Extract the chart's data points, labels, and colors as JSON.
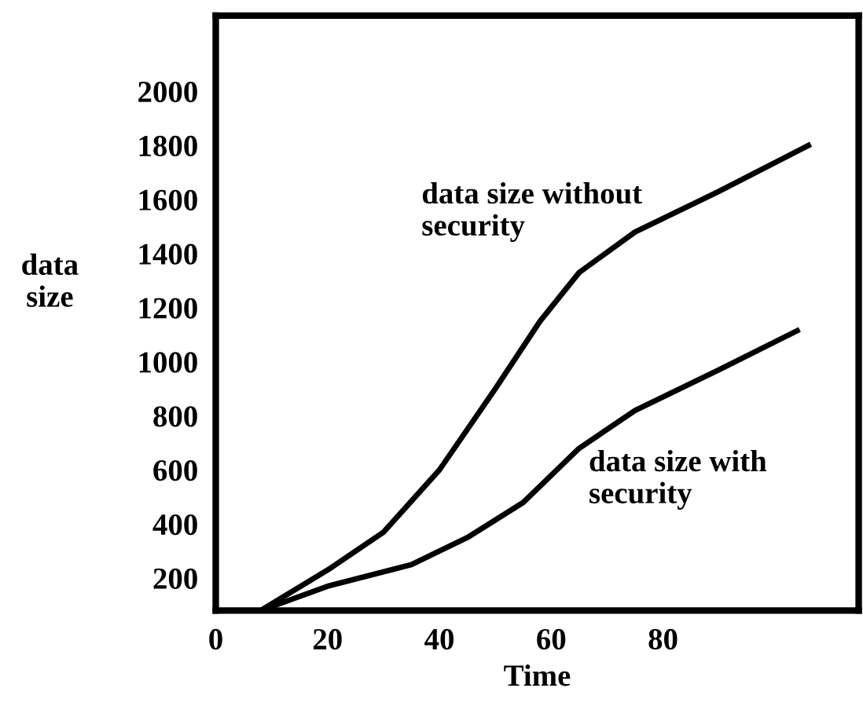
{
  "chart_data": {
    "type": "line",
    "xlabel": "Time",
    "ylabel": "data size",
    "xlim": [
      0,
      115
    ],
    "xticks": [
      0,
      20,
      40,
      60,
      80
    ],
    "ylim": [
      80,
      2280
    ],
    "yticks": [
      200,
      400,
      600,
      800,
      1000,
      1200,
      1400,
      1600,
      1800,
      2000
    ],
    "grid": false,
    "marker": "none",
    "line_style": "solid",
    "series": [
      {
        "color": "#000000",
        "x": [
          8,
          20,
          30,
          40,
          50,
          58,
          65,
          75,
          90,
          106
        ],
        "values": [
          80,
          230,
          370,
          600,
          900,
          1150,
          1330,
          1480,
          1630,
          1800
        ]
      },
      {
        "color": "#000000",
        "x": [
          8,
          20,
          35,
          45,
          55,
          65,
          75,
          90,
          104
        ],
        "values": [
          80,
          170,
          250,
          350,
          480,
          680,
          820,
          970,
          1115
        ]
      }
    ],
    "annotations": [
      "data size without\nsecurity",
      "data size with\nsecurity"
    ]
  }
}
